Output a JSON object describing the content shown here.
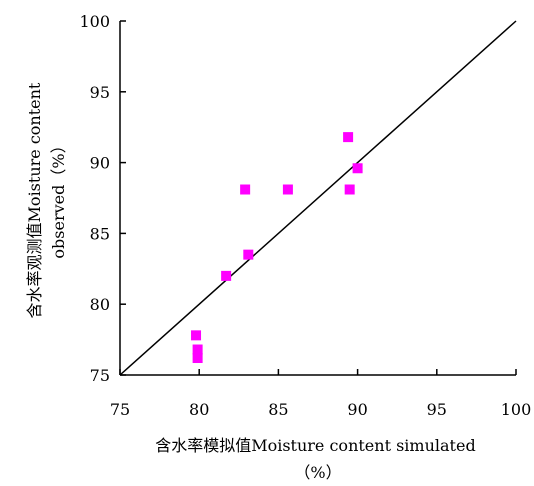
{
  "chart_data": {
    "type": "scatter",
    "xlabel_lines": [
      "含水率模拟值Moisture content simulated",
      "（%）"
    ],
    "ylabel_lines": [
      "含水率观测值Moisture content",
      "observed（%）"
    ],
    "xlim": [
      75,
      100
    ],
    "ylim": [
      75,
      100
    ],
    "x_ticks": [
      "75",
      "80",
      "85",
      "90",
      "95",
      "100"
    ],
    "y_ticks": [
      "75",
      "80",
      "85",
      "90",
      "95",
      "100"
    ],
    "grid": false,
    "reference_line": {
      "type": "1:1",
      "from": [
        75,
        75
      ],
      "to": [
        100,
        100
      ]
    },
    "marker": {
      "shape": "square",
      "color": "#ff00ff"
    },
    "points": [
      {
        "x": 79.8,
        "y": 77.8
      },
      {
        "x": 79.9,
        "y": 76.8
      },
      {
        "x": 79.9,
        "y": 76.2
      },
      {
        "x": 81.7,
        "y": 82.0
      },
      {
        "x": 82.9,
        "y": 88.1
      },
      {
        "x": 83.1,
        "y": 83.5
      },
      {
        "x": 85.6,
        "y": 88.1
      },
      {
        "x": 89.4,
        "y": 91.8
      },
      {
        "x": 89.5,
        "y": 88.1
      },
      {
        "x": 90.0,
        "y": 89.6
      }
    ]
  }
}
